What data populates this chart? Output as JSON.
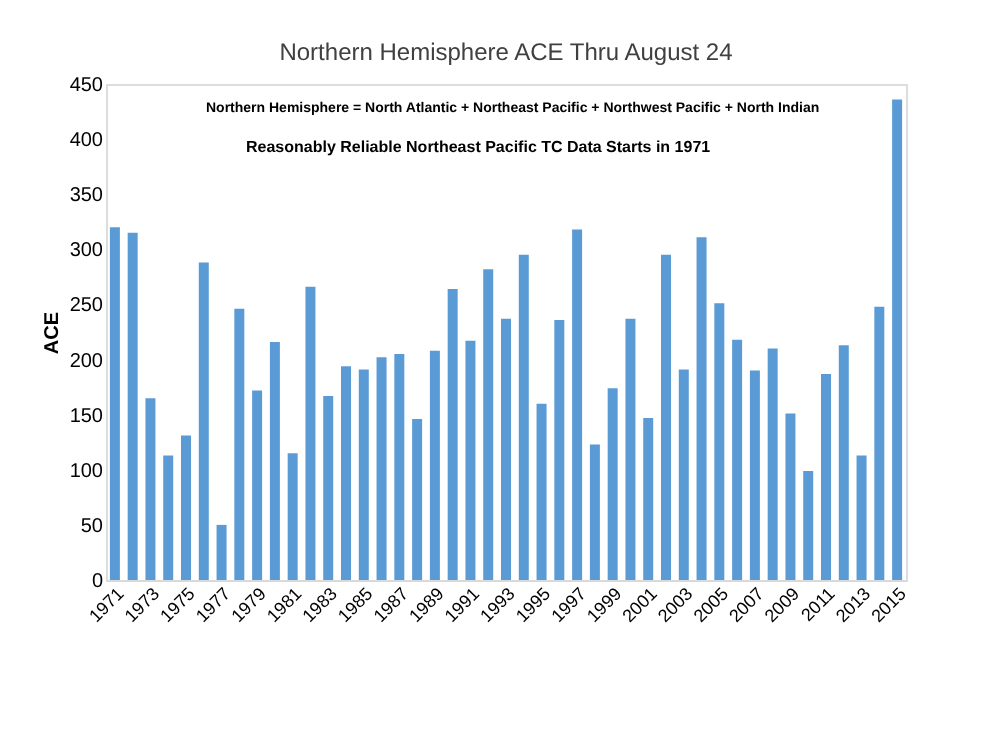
{
  "chart_data": {
    "type": "bar",
    "title": "Northern Hemisphere ACE Thru August 24",
    "ylabel": "ACE",
    "annotations": [
      "Northern Hemisphere = North Atlantic + Northeast Pacific + Northwest Pacific + North Indian",
      "Reasonably Reliable Northeast Pacific TC Data Starts in 1971"
    ],
    "categories": [
      "1971",
      null,
      "1973",
      null,
      "1975",
      null,
      "1977",
      null,
      "1979",
      null,
      "1981",
      null,
      "1983",
      null,
      "1985",
      null,
      "1987",
      null,
      "1989",
      null,
      "1991",
      null,
      "1993",
      null,
      "1995",
      null,
      "1997",
      null,
      "1999",
      null,
      "2001",
      null,
      "2003",
      null,
      "2005",
      null,
      "2007",
      null,
      "2009",
      null,
      "2011",
      null,
      "2013",
      null,
      "2015"
    ],
    "values": [
      320,
      315,
      165,
      113,
      131,
      288,
      50,
      246,
      172,
      216,
      115,
      266,
      167,
      194,
      191,
      202,
      205,
      146,
      208,
      264,
      217,
      282,
      237,
      295,
      160,
      236,
      318,
      123,
      174,
      237,
      147,
      295,
      191,
      311,
      251,
      218,
      190,
      210,
      151,
      99,
      187,
      213,
      113,
      248,
      436
    ],
    "color": "#5b9bd5",
    "ylim": [
      0,
      450
    ],
    "yticks": [
      0,
      50,
      100,
      150,
      200,
      250,
      300,
      350,
      400,
      450
    ],
    "grid": false
  }
}
